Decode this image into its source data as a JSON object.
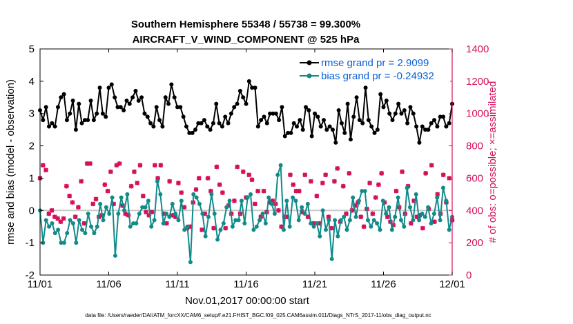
{
  "colors": {
    "rmse": "#000000",
    "bias": "#118a8a",
    "obs": "#d6105a",
    "legend_text": "#0a5fd6",
    "zero_line": "#c8c8c8"
  },
  "chart_data": {
    "type": "line",
    "title_line1": "Southern Hemisphere 55348 / 55738 = 99.300%",
    "title_line2": "AIRCRAFT_V_WIND_COMPONENT @ 525 hPa",
    "xlabel": "Nov.01,2017 00:00:00 start",
    "ylabel_left": "rmse and bias (model - observation)",
    "ylabel_right": "# of obs: o=possible; ×=assimilated",
    "x_tick_labels": [
      "11/01",
      "11/06",
      "11/11",
      "11/16",
      "11/21",
      "11/26",
      "12/01"
    ],
    "x_tick_values": [
      0,
      5,
      10,
      15,
      20,
      25,
      30
    ],
    "xlim": [
      0,
      30
    ],
    "ylim_left": [
      -2,
      5
    ],
    "y_ticks_left": [
      "-2",
      "-1",
      "0",
      "1",
      "2",
      "3",
      "4",
      "5"
    ],
    "ylim_right": [
      0,
      1400
    ],
    "y_ticks_right": [
      "0",
      "200",
      "400",
      "600",
      "800",
      "1000",
      "1200",
      "1400"
    ],
    "legend": {
      "position": "top-right",
      "rmse_label": "rmse grand pr = 2.9099",
      "bias_label": "bias grand pr = -0.24932"
    },
    "footnote": "data file: /Users/raeder/DAI/ATM_forcXX/CAM6_setup/f.e21.FHIST_BGC.f09_025.CAM6assim.011/Diags_NTrS_2017-11/obs_diag_output.nc",
    "series": [
      {
        "name": "rmse",
        "values": [
          3.1,
          2.8,
          3.2,
          2.6,
          2.7,
          2.6,
          3.2,
          3.5,
          3.6,
          2.8,
          3.0,
          3.4,
          2.5,
          3.3,
          2.7,
          2.8,
          2.8,
          3.4,
          2.8,
          3.0,
          3.8,
          3.0,
          2.9,
          3.8,
          3.9,
          3.5,
          3.2,
          3.2,
          3.1,
          3.4,
          3.3,
          3.5,
          3.7,
          3.4,
          3.5,
          3.0,
          2.9,
          2.7,
          2.6,
          3.2,
          2.8,
          2.6,
          3.5,
          3.3,
          3.9,
          3.5,
          3.2,
          3.2,
          2.9,
          2.6,
          2.4,
          2.4,
          2.5,
          2.7,
          2.7,
          2.8,
          2.6,
          2.5,
          2.7,
          3.3,
          2.7,
          2.6,
          2.9,
          2.7,
          3.0,
          3.2,
          3.3,
          3.7,
          3.5,
          3.3,
          4.0,
          3.8,
          3.8,
          2.6,
          2.8,
          2.9,
          2.7,
          3.0,
          3.0,
          3.0,
          2.8,
          3.2,
          2.3,
          2.4,
          2.4,
          2.7,
          2.6,
          2.8,
          2.5,
          3.2,
          3.1,
          2.3,
          3.0,
          2.9,
          2.6,
          2.8,
          2.5,
          2.6,
          2.5,
          2.1,
          3.1,
          2.7,
          2.4,
          3.3,
          2.2,
          2.9,
          3.5,
          2.8,
          2.7,
          3.8,
          2.8,
          2.6,
          2.4,
          2.5,
          3.6,
          3.2,
          3.4,
          3.0,
          2.8,
          3.0,
          3.3,
          3.0,
          3.1,
          2.7,
          3.2,
          3.0,
          2.6,
          2.1,
          2.6,
          2.5,
          2.5,
          2.7,
          2.8,
          2.6,
          2.9,
          2.9,
          2.6,
          2.7,
          3.3
        ]
      },
      {
        "name": "bias",
        "values": [
          0.0,
          -1.0,
          -0.3,
          -0.5,
          -0.4,
          -0.7,
          -0.6,
          -1.0,
          -1.0,
          -0.7,
          -0.3,
          -0.4,
          -1.0,
          -0.3,
          -0.6,
          -0.7,
          -0.1,
          -0.5,
          -0.7,
          -0.5,
          0.2,
          -0.3,
          0.1,
          -0.1,
          0.4,
          -1.4,
          -0.1,
          0.4,
          0.0,
          0.5,
          -0.5,
          -0.4,
          -0.4,
          -0.1,
          0.1,
          0.1,
          0.3,
          -0.5,
          -0.3,
          0.9,
          0.5,
          -0.4,
          -0.1,
          -0.2,
          0.2,
          -0.1,
          -0.3,
          0.3,
          -0.6,
          -0.5,
          -1.6,
          0.5,
          0.4,
          0.2,
          -0.1,
          -0.8,
          -0.2,
          0.5,
          -0.1,
          -0.9,
          -0.6,
          -0.4,
          0.1,
          0.3,
          -0.5,
          -0.3,
          -0.3,
          0.3,
          -0.4,
          0.4,
          0.5,
          -0.6,
          -0.5,
          -0.3,
          -0.1,
          -0.4,
          0.4,
          0.2,
          -0.1,
          1.1,
          1.4,
          -0.6,
          0.3,
          -0.5,
          0.4,
          0.3,
          -0.3,
          0.1,
          -0.1,
          0.2,
          -0.4,
          -0.5,
          -0.4,
          -0.8,
          0.0,
          -0.6,
          -0.3,
          -1.5,
          -0.3,
          -0.8,
          -0.3,
          -0.2,
          -0.6,
          -0.3,
          0.4,
          -0.2,
          0.3,
          0.6,
          0.6,
          -0.3,
          -0.5,
          -0.3,
          -0.4,
          -0.6,
          0.3,
          -0.1,
          0.1,
          -0.6,
          -0.2,
          0.4,
          -0.3,
          -0.5,
          0.7,
          0.1,
          -0.3,
          0.5,
          -0.3,
          -0.1,
          -0.2,
          0.1,
          -0.4,
          -0.1,
          0.4,
          -0.3,
          0.7,
          0.3,
          -0.6,
          -0.2
        ]
      },
      {
        "name": "obs_assimilated",
        "marker": "x",
        "values": [
          600,
          680,
          650,
          380,
          400,
          360,
          350,
          330,
          350,
          550,
          490,
          450,
          360,
          420,
          580,
          320,
          690,
          690,
          440,
          470,
          360,
          370,
          560,
          520,
          640,
          440,
          680,
          690,
          430,
          380,
          370,
          550,
          640,
          570,
          680,
          490,
          390,
          370,
          390,
          680,
          600,
          680,
          380,
          320,
          580,
          370,
          360,
          570,
          510,
          420,
          290,
          300,
          450,
          530,
          600,
          280,
          380,
          600,
          520,
          290,
          670,
          560,
          510,
          290,
          430,
          380,
          460,
          670,
          380,
          640,
          480,
          620,
          590,
          440,
          520,
          360,
          520,
          390,
          450,
          460,
          440,
          400,
          300,
          360,
          360,
          620,
          560,
          520,
          520,
          390,
          620,
          360,
          580,
          320,
          490,
          320,
          570,
          620,
          360,
          290,
          580,
          660,
          330,
          550,
          380,
          630,
          400,
          430,
          450,
          360,
          300,
          410,
          570,
          380,
          480,
          560,
          630,
          450,
          360,
          330,
          310,
          520,
          420,
          640,
          380,
          550,
          320,
          460,
          360,
          370,
          290,
          630,
          410,
          680,
          330,
          500,
          380,
          620,
          450,
          600,
          340
        ]
      },
      {
        "name": "obs_possible",
        "marker": "o",
        "values": [
          600,
          680,
          650,
          380,
          400,
          360,
          350,
          330,
          350,
          550,
          490,
          450,
          360,
          420,
          580,
          320,
          690,
          690,
          440,
          470,
          360,
          370,
          560,
          520,
          640,
          440,
          680,
          690,
          430,
          380,
          370,
          550,
          640,
          570,
          680,
          490,
          390,
          370,
          390,
          680,
          600,
          680,
          380,
          320,
          580,
          370,
          360,
          570,
          510,
          420,
          290,
          300,
          450,
          530,
          600,
          280,
          380,
          600,
          520,
          290,
          670,
          560,
          510,
          290,
          430,
          380,
          460,
          670,
          380,
          640,
          480,
          620,
          590,
          440,
          520,
          360,
          520,
          390,
          450,
          460,
          440,
          400,
          300,
          360,
          360,
          620,
          560,
          520,
          520,
          390,
          620,
          360,
          580,
          320,
          490,
          320,
          570,
          620,
          360,
          290,
          580,
          660,
          330,
          550,
          380,
          630,
          400,
          430,
          450,
          360,
          300,
          410,
          570,
          380,
          480,
          560,
          630,
          450,
          360,
          330,
          310,
          520,
          420,
          640,
          380,
          550,
          320,
          460,
          360,
          370,
          290,
          630,
          410,
          680,
          330,
          500,
          380,
          620,
          450,
          600,
          340
        ]
      }
    ]
  }
}
